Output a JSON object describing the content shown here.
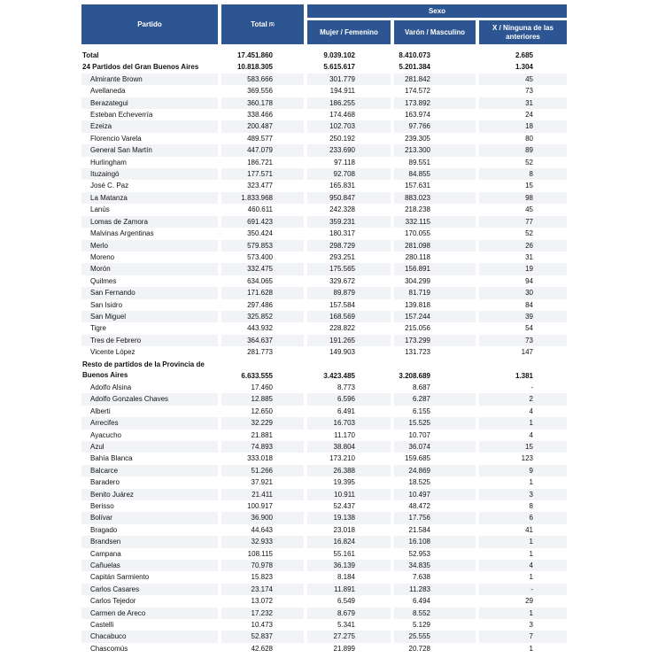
{
  "header": {
    "partido": "Partido",
    "total": "Total",
    "total_note": "(5)",
    "sexo": "Sexo",
    "mujer": "Mujer / Femenino",
    "varon": "Varón / Masculino",
    "x": "X / Ninguna de las anteriores"
  },
  "colors": {
    "header_bg": "#2c5592",
    "header_text": "#ffffff"
  },
  "rows": [
    {
      "name": "Total",
      "total": "17.451.860",
      "mujer": "9.039.102",
      "varon": "8.410.073",
      "x": "2.685",
      "bold": true
    },
    {
      "name": "24 Partidos del Gran Buenos Aires",
      "total": "10.818.305",
      "mujer": "5.615.617",
      "varon": "5.201.384",
      "x": "1.304",
      "bold": true
    },
    {
      "name": "Almirante Brown",
      "total": "583.666",
      "mujer": "301.779",
      "varon": "281.842",
      "x": "45"
    },
    {
      "name": "Avellaneda",
      "total": "369.556",
      "mujer": "194.911",
      "varon": "174.572",
      "x": "73"
    },
    {
      "name": "Berazategui",
      "total": "360.178",
      "mujer": "186.255",
      "varon": "173.892",
      "x": "31"
    },
    {
      "name": "Esteban Echeverría",
      "total": "338.466",
      "mujer": "174.468",
      "varon": "163.974",
      "x": "24"
    },
    {
      "name": "Ezeiza",
      "total": "200.487",
      "mujer": "102.703",
      "varon": "97.766",
      "x": "18"
    },
    {
      "name": "Florencio Varela",
      "total": "489.577",
      "mujer": "250.192",
      "varon": "239.305",
      "x": "80"
    },
    {
      "name": "General San Martín",
      "total": "447.079",
      "mujer": "233.690",
      "varon": "213.300",
      "x": "89"
    },
    {
      "name": "Hurlingham",
      "total": "186.721",
      "mujer": "97.118",
      "varon": "89.551",
      "x": "52"
    },
    {
      "name": "Ituzaingó",
      "total": "177.571",
      "mujer": "92.708",
      "varon": "84.855",
      "x": "8"
    },
    {
      "name": "José C. Paz",
      "total": "323.477",
      "mujer": "165.831",
      "varon": "157.631",
      "x": "15"
    },
    {
      "name": "La Matanza",
      "total": "1.833.968",
      "mujer": "950.847",
      "varon": "883.023",
      "x": "98"
    },
    {
      "name": "Lanús",
      "total": "460.611",
      "mujer": "242.328",
      "varon": "218.238",
      "x": "45"
    },
    {
      "name": "Lomas de Zamora",
      "total": "691.423",
      "mujer": "359.231",
      "varon": "332.115",
      "x": "77"
    },
    {
      "name": "Malvinas Argentinas",
      "total": "350.424",
      "mujer": "180.317",
      "varon": "170.055",
      "x": "52"
    },
    {
      "name": "Merlo",
      "total": "579.853",
      "mujer": "298.729",
      "varon": "281.098",
      "x": "26"
    },
    {
      "name": "Moreno",
      "total": "573.400",
      "mujer": "293.251",
      "varon": "280.118",
      "x": "31"
    },
    {
      "name": "Morón",
      "total": "332.475",
      "mujer": "175.565",
      "varon": "156.891",
      "x": "19"
    },
    {
      "name": "Quilmes",
      "total": "634.065",
      "mujer": "329.672",
      "varon": "304.299",
      "x": "94"
    },
    {
      "name": "San Fernando",
      "total": "171.628",
      "mujer": "89.879",
      "varon": "81.719",
      "x": "30"
    },
    {
      "name": "San Isidro",
      "total": "297.486",
      "mujer": "157.584",
      "varon": "139.818",
      "x": "84"
    },
    {
      "name": "San Miguel",
      "total": "325.852",
      "mujer": "168.569",
      "varon": "157.244",
      "x": "39"
    },
    {
      "name": "Tigre",
      "total": "443.932",
      "mujer": "228.822",
      "varon": "215.056",
      "x": "54"
    },
    {
      "name": "Tres de Febrero",
      "total": "364.637",
      "mujer": "191.265",
      "varon": "173.299",
      "x": "73"
    },
    {
      "name": "Vicente López",
      "total": "281.773",
      "mujer": "149.903",
      "varon": "131.723",
      "x": "147"
    },
    {
      "name": "Resto de partidos de la Provincia de Buenos Aires",
      "total": "6.633.555",
      "mujer": "3.423.485",
      "varon": "3.208.689",
      "x": "1.381",
      "bold": true,
      "two": true
    },
    {
      "name": "Adolfo Alsina",
      "total": "17.460",
      "mujer": "8.773",
      "varon": "8.687",
      "x": "-"
    },
    {
      "name": "Adolfo Gonzales Chaves",
      "total": "12.885",
      "mujer": "6.596",
      "varon": "6.287",
      "x": "2"
    },
    {
      "name": "Alberti",
      "total": "12.650",
      "mujer": "6.491",
      "varon": "6.155",
      "x": "4"
    },
    {
      "name": "Arrecifes",
      "total": "32.229",
      "mujer": "16.703",
      "varon": "15.525",
      "x": "1"
    },
    {
      "name": "Ayacucho",
      "total": "21.881",
      "mujer": "11.170",
      "varon": "10.707",
      "x": "4"
    },
    {
      "name": "Azul",
      "total": "74.893",
      "mujer": "38.804",
      "varon": "36.074",
      "x": "15"
    },
    {
      "name": "Bahía Blanca",
      "total": "333.018",
      "mujer": "173.210",
      "varon": "159.685",
      "x": "123"
    },
    {
      "name": "Balcarce",
      "total": "51.266",
      "mujer": "26.388",
      "varon": "24.869",
      "x": "9"
    },
    {
      "name": "Baradero",
      "total": "37.921",
      "mujer": "19.395",
      "varon": "18.525",
      "x": "1"
    },
    {
      "name": "Benito Juárez",
      "total": "21.411",
      "mujer": "10.911",
      "varon": "10.497",
      "x": "3"
    },
    {
      "name": "Berisso",
      "total": "100.917",
      "mujer": "52.437",
      "varon": "48.472",
      "x": "8"
    },
    {
      "name": "Bolívar",
      "total": "36.900",
      "mujer": "19.138",
      "varon": "17.756",
      "x": "6"
    },
    {
      "name": "Bragado",
      "total": "44.643",
      "mujer": "23.018",
      "varon": "21.584",
      "x": "41"
    },
    {
      "name": "Brandsen",
      "total": "32.933",
      "mujer": "16.824",
      "varon": "16.108",
      "x": "1"
    },
    {
      "name": "Campana",
      "total": "108.115",
      "mujer": "55.161",
      "varon": "52.953",
      "x": "1"
    },
    {
      "name": "Cañuelas",
      "total": "70.978",
      "mujer": "36.139",
      "varon": "34.835",
      "x": "4"
    },
    {
      "name": "Capitán Sarmiento",
      "total": "15.823",
      "mujer": "8.184",
      "varon": "7.638",
      "x": "1"
    },
    {
      "name": "Carlos Casares",
      "total": "23.174",
      "mujer": "11.891",
      "varon": "11.283",
      "x": "-"
    },
    {
      "name": "Carlos Tejedor",
      "total": "13.072",
      "mujer": "6.549",
      "varon": "6.494",
      "x": "29"
    },
    {
      "name": "Carmen de Areco",
      "total": "17.232",
      "mujer": "8.679",
      "varon": "8.552",
      "x": "1"
    },
    {
      "name": "Castelli",
      "total": "10.473",
      "mujer": "5.341",
      "varon": "5.129",
      "x": "3"
    },
    {
      "name": "Chacabuco",
      "total": "52.837",
      "mujer": "27.275",
      "varon": "25.555",
      "x": "7"
    },
    {
      "name": "Chascomús",
      "total": "42.628",
      "mujer": "21.899",
      "varon": "20.728",
      "x": "1"
    }
  ]
}
